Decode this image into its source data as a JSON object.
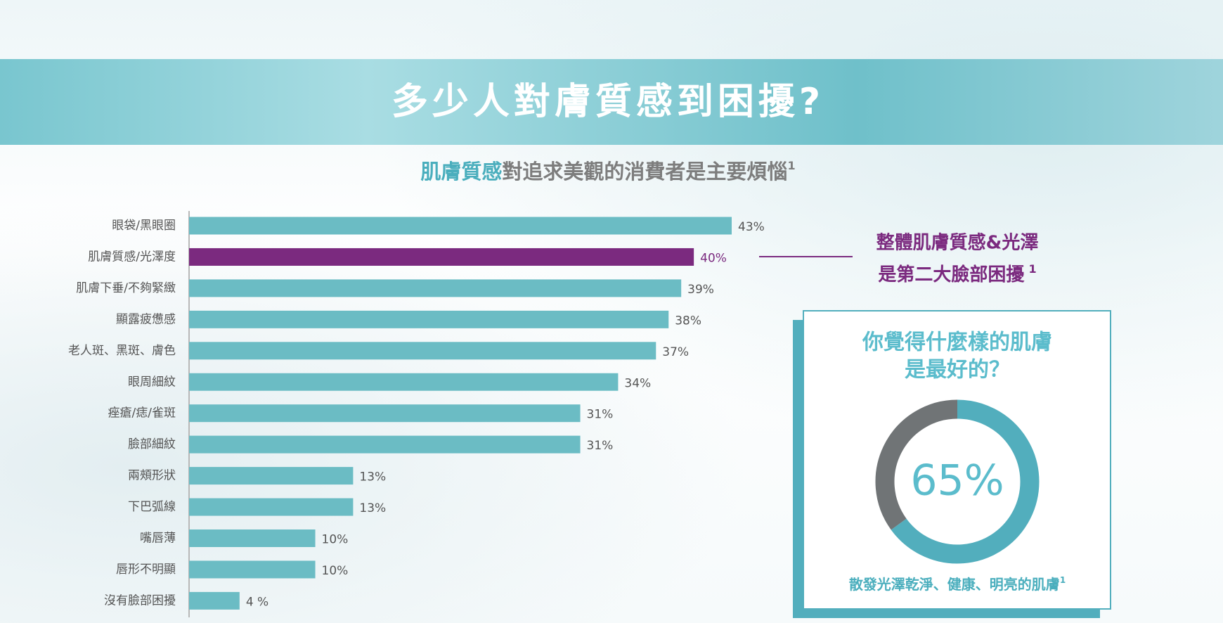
{
  "chart_data": [
    {
      "type": "bar",
      "title": "多少人對膚質感到困擾?",
      "subtitle": {
        "highlight": "肌膚質感",
        "text": "對追求美觀的消費者是主要煩惱",
        "note": "1"
      },
      "categories": [
        "眼袋/黑眼圈",
        "肌膚質感/光澤度",
        "肌膚下垂/不夠緊緻",
        "顯露疲憊感",
        "老人斑、黑斑、膚色",
        "眼周細紋",
        "痤瘡/痣/雀斑",
        "臉部細紋",
        "兩頰形狀",
        "下巴弧線",
        "嘴唇薄",
        "唇形不明顯",
        "沒有臉部困擾"
      ],
      "values": [
        43,
        40,
        39,
        38,
        37,
        34,
        31,
        31,
        13,
        13,
        10,
        10,
        4
      ],
      "value_labels": [
        "43%",
        "40%",
        "39%",
        "38%",
        "37%",
        "34%",
        "31%",
        "31%",
        "13%",
        "13%",
        "10%",
        "10%",
        "4 %"
      ],
      "colors": [
        "#6bbcc4",
        "#7b2a7f",
        "#6bbcc4",
        "#6bbcc4",
        "#6bbcc4",
        "#6bbcc4",
        "#6bbcc4",
        "#6bbcc4",
        "#6bbcc4",
        "#6bbcc4",
        "#6bbcc4",
        "#6bbcc4",
        "#6bbcc4"
      ],
      "annotation": {
        "lines": [
          "整體肌膚質感&光澤",
          "是第二大臉部困擾"
        ],
        "note": "1"
      }
    },
    {
      "type": "donut",
      "title_lines": [
        "你覺得什麼樣的肌膚",
        "是最好的？"
      ],
      "values": [
        65,
        35
      ],
      "colors": [
        "#52aebd",
        "#707476"
      ],
      "value_labels": [
        "65%",
        null
      ],
      "caption": "散發光澤乾淨、健康、明亮的肌膚",
      "caption_note": "1"
    }
  ]
}
